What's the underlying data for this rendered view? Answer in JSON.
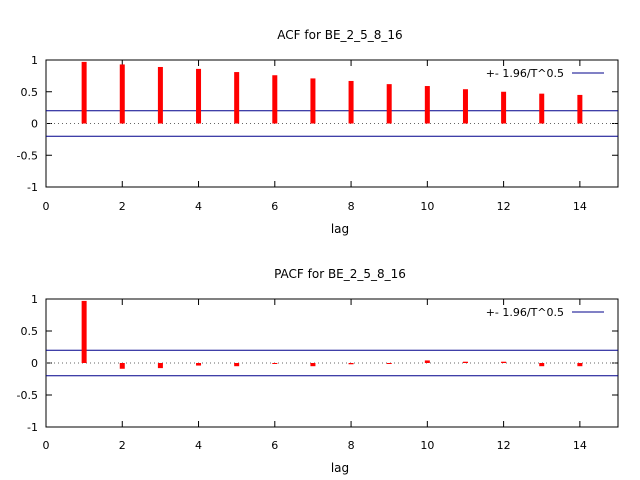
{
  "chart_data": [
    {
      "type": "bar",
      "title": "ACF for BE_2_5_8_16",
      "xlabel": "lag",
      "ylabel": "",
      "xlim": [
        0,
        15
      ],
      "ylim": [
        -1,
        1
      ],
      "xticks": [
        0,
        2,
        4,
        6,
        8,
        10,
        12,
        14
      ],
      "yticks": [
        1,
        0.5,
        0,
        -0.5,
        -1
      ],
      "ytick_labels": [
        "1",
        "0.5",
        "0",
        "-0.5",
        "-1"
      ],
      "lags": [
        1,
        2,
        3,
        4,
        5,
        6,
        7,
        8,
        9,
        10,
        11,
        12,
        13,
        14
      ],
      "values": [
        0.97,
        0.93,
        0.89,
        0.86,
        0.81,
        0.76,
        0.71,
        0.67,
        0.62,
        0.59,
        0.54,
        0.5,
        0.47,
        0.45
      ],
      "bound": 0.2,
      "bound_label": "+- 1.96/T^0.5",
      "grid": false,
      "legend_position": "top-right",
      "colors": {
        "bars": "#ff0000",
        "bound": "#00008b",
        "zero_line": "#666666"
      }
    },
    {
      "type": "bar",
      "title": "PACF for BE_2_5_8_16",
      "xlabel": "lag",
      "ylabel": "",
      "xlim": [
        0,
        15
      ],
      "ylim": [
        -1,
        1
      ],
      "xticks": [
        0,
        2,
        4,
        6,
        8,
        10,
        12,
        14
      ],
      "yticks": [
        1,
        0.5,
        0,
        -0.5,
        -1
      ],
      "ytick_labels": [
        "1",
        "0.5",
        "0",
        "-0.5",
        "-1"
      ],
      "lags": [
        1,
        2,
        3,
        4,
        5,
        6,
        7,
        8,
        9,
        10,
        11,
        12,
        13,
        14
      ],
      "values": [
        0.97,
        -0.09,
        -0.08,
        -0.04,
        -0.05,
        0.0,
        -0.05,
        -0.02,
        0.0,
        0.04,
        0.02,
        0.02,
        -0.05,
        -0.05
      ],
      "bound": 0.2,
      "bound_label": "+- 1.96/T^0.5",
      "grid": false,
      "legend_position": "top-right",
      "colors": {
        "bars": "#ff0000",
        "bound": "#00008b",
        "zero_line": "#666666"
      }
    }
  ]
}
